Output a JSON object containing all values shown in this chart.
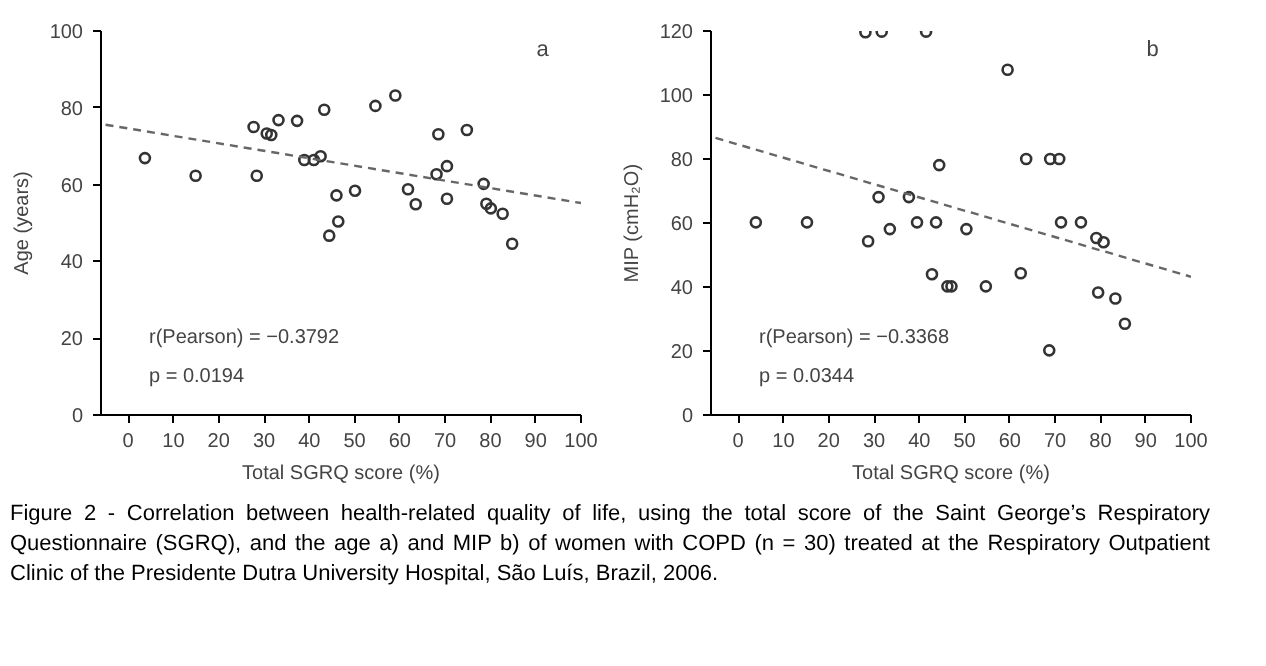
{
  "chart_data": [
    {
      "type": "scatter",
      "xlabel": "Total SGRQ score (%)",
      "ylabel": "Age (years)",
      "xlim": [
        -6,
        100
      ],
      "ylim": [
        0,
        100
      ],
      "xticks": [
        0,
        10,
        20,
        30,
        40,
        50,
        60,
        70,
        80,
        90,
        100
      ],
      "yticks": [
        0,
        20,
        40,
        60,
        80,
        100
      ],
      "grid": false,
      "annotations": [
        "a",
        "r(Pearson) = −0.3792",
        "p = 0.0194"
      ],
      "series": [
        {
          "type": "scatter",
          "marker": "circle",
          "color": "#333333",
          "x": [
            3.7,
            14.9,
            27.7,
            28.4,
            30.6,
            31.6,
            33.2,
            37.3,
            38.9,
            41.0,
            42.5,
            43.3,
            44.4,
            46.0,
            46.4,
            50.1,
            54.6,
            59.0,
            61.8,
            63.5,
            68.1,
            68.5,
            70.4,
            70.4,
            74.8,
            78.5,
            79.1,
            80.1,
            82.7,
            84.8
          ],
          "values": [
            66.9,
            62.3,
            75,
            62.3,
            73.3,
            72.9,
            76.8,
            76.6,
            66.4,
            66.4,
            67.4,
            79.5,
            46.7,
            57.2,
            50.4,
            58.4,
            80.5,
            83.2,
            58.8,
            54.9,
            62.7,
            73.1,
            64.8,
            56.3,
            74.2,
            60.2,
            55.0,
            53.8,
            52.4,
            44.6
          ]
        },
        {
          "type": "line",
          "line_style": "dashed",
          "color": "#666666",
          "x": [
            -5,
            100
          ],
          "values": [
            75.6,
            55.2
          ]
        }
      ]
    },
    {
      "type": "scatter",
      "xlabel": "Total SGRQ score (%)",
      "ylabel": "MIP (cmH₂O)",
      "xlim": [
        -6,
        100
      ],
      "ylim": [
        0,
        120
      ],
      "xticks": [
        0,
        10,
        20,
        30,
        40,
        50,
        60,
        70,
        80,
        90,
        100
      ],
      "yticks": [
        0,
        20,
        40,
        60,
        80,
        100,
        120
      ],
      "grid": false,
      "annotations": [
        "b",
        "r(Pearson) = −0.3368",
        "p = 0.0344"
      ],
      "series": [
        {
          "type": "scatter",
          "marker": "circle",
          "color": "#333333",
          "x": [
            3.9,
            15.2,
            28.1,
            28.7,
            31.0,
            31.7,
            33.5,
            37.7,
            39.5,
            41.5,
            43.7,
            44.4,
            42.8,
            46.2,
            47.1,
            50.4,
            54.7,
            59.5,
            62.4,
            63.6,
            68.9,
            70.9,
            68.7,
            71.3,
            75.7,
            79.1,
            80.7,
            79.5,
            83.3,
            85.4
          ],
          "values": [
            60.2,
            60.2,
            119.6,
            54.3,
            68.1,
            119.8,
            58.1,
            68.1,
            60.2,
            119.8,
            60.2,
            78.1,
            44.0,
            40.2,
            40.2,
            58.1,
            40.2,
            107.9,
            44.3,
            80.0,
            80.0,
            80.0,
            20.2,
            60.2,
            60.2,
            55.3,
            54.0,
            38.3,
            36.4,
            28.5
          ]
        },
        {
          "type": "line",
          "line_style": "dashed",
          "color": "#666666",
          "x": [
            -5,
            100
          ],
          "values": [
            86.6,
            43.2
          ]
        }
      ]
    },
    {
      "type": "other",
      "annotations": [
        "Figure 2 - Correlation between health-related quality of life, using the total score of the Saint George’s Respiratory Questionnaire (SGRQ), and the age a) and MIP b) of women with COPD (n = 30) treated at the Respiratory Outpatient Clinic of the Presidente Dutra University Hospital, São Luís, Brazil, 2006."
      ]
    }
  ]
}
